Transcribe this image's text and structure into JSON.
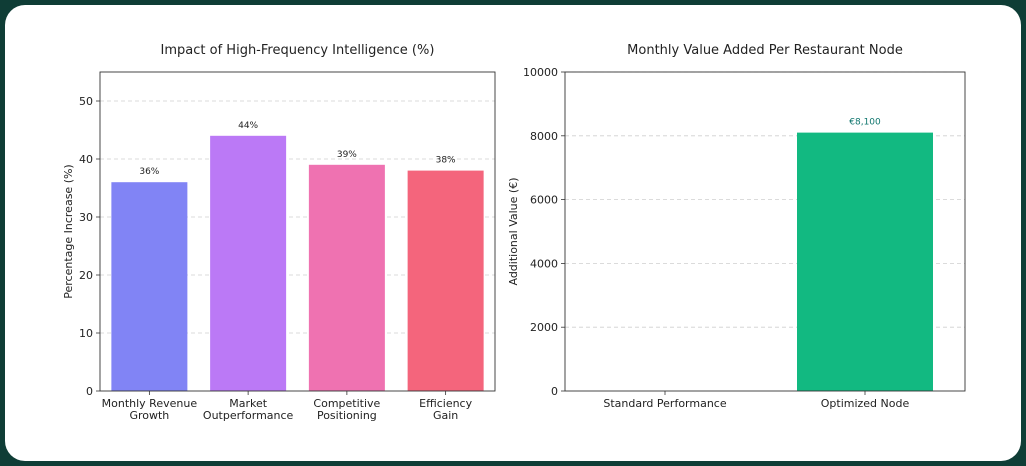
{
  "chart_data": [
    {
      "type": "bar",
      "title": "Impact of High-Frequency Intelligence (%)",
      "xlabel": "",
      "ylabel": "Percentage Increase (%)",
      "ylim": [
        0,
        55
      ],
      "yticks": [
        0,
        10,
        20,
        30,
        40,
        50
      ],
      "grid": true,
      "categories": [
        [
          "Monthly Revenue",
          "Growth"
        ],
        [
          "Market",
          "Outperformance"
        ],
        [
          "Competitive",
          "Positioning"
        ],
        [
          "Efficiency",
          "Gain"
        ]
      ],
      "values": [
        36,
        44,
        39,
        38
      ],
      "data_labels": [
        "36%",
        "44%",
        "39%",
        "38%"
      ],
      "colors": [
        "#8184f5",
        "#bb79f6",
        "#ef72b1",
        "#f4657c"
      ],
      "label_color": "#222222"
    },
    {
      "type": "bar",
      "title": "Monthly Value Added Per Restaurant Node",
      "xlabel": "",
      "ylabel": "Additional Value (€)",
      "ylim": [
        0,
        10000
      ],
      "yticks": [
        0,
        2000,
        4000,
        6000,
        8000,
        10000
      ],
      "grid": true,
      "categories": [
        [
          "Standard Performance"
        ],
        [
          "Optimized Node"
        ]
      ],
      "values": [
        0,
        8100
      ],
      "data_labels": [
        "",
        "€8,100"
      ],
      "colors": [
        "#9ca3af",
        "#12b981"
      ],
      "label_color": "#0f766e"
    }
  ]
}
